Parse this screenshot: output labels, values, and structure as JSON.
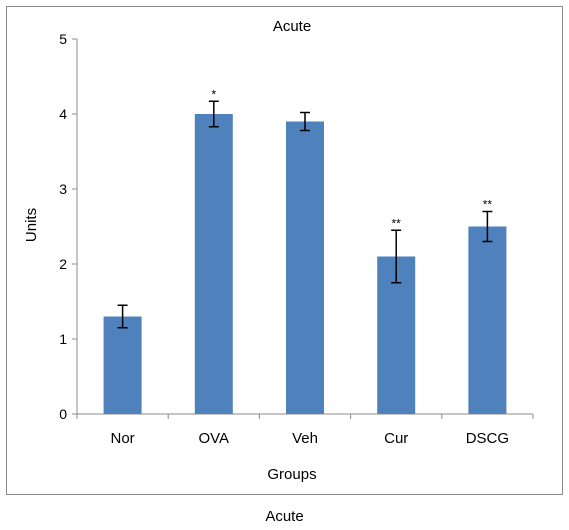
{
  "caption": "Acute",
  "colors": {
    "bar": "#4f81bd",
    "axis": "#8c8c8c",
    "frame": "#8c8c8c",
    "errorbar": "#000000"
  },
  "chart_data": {
    "type": "bar",
    "title": "Acute",
    "xlabel": "Groups",
    "ylabel": "Units",
    "categories": [
      "Nor",
      "OVA",
      "Veh",
      "Cur",
      "DSCG"
    ],
    "values": [
      1.3,
      4.0,
      3.9,
      2.1,
      2.5
    ],
    "error": [
      0.15,
      0.17,
      0.12,
      0.35,
      0.2
    ],
    "significance": [
      "",
      "*",
      "",
      "**",
      "**"
    ],
    "ylim": [
      0,
      5
    ],
    "yticks": [
      0,
      1,
      2,
      3,
      4,
      5
    ],
    "grid": false,
    "legend": "none"
  }
}
